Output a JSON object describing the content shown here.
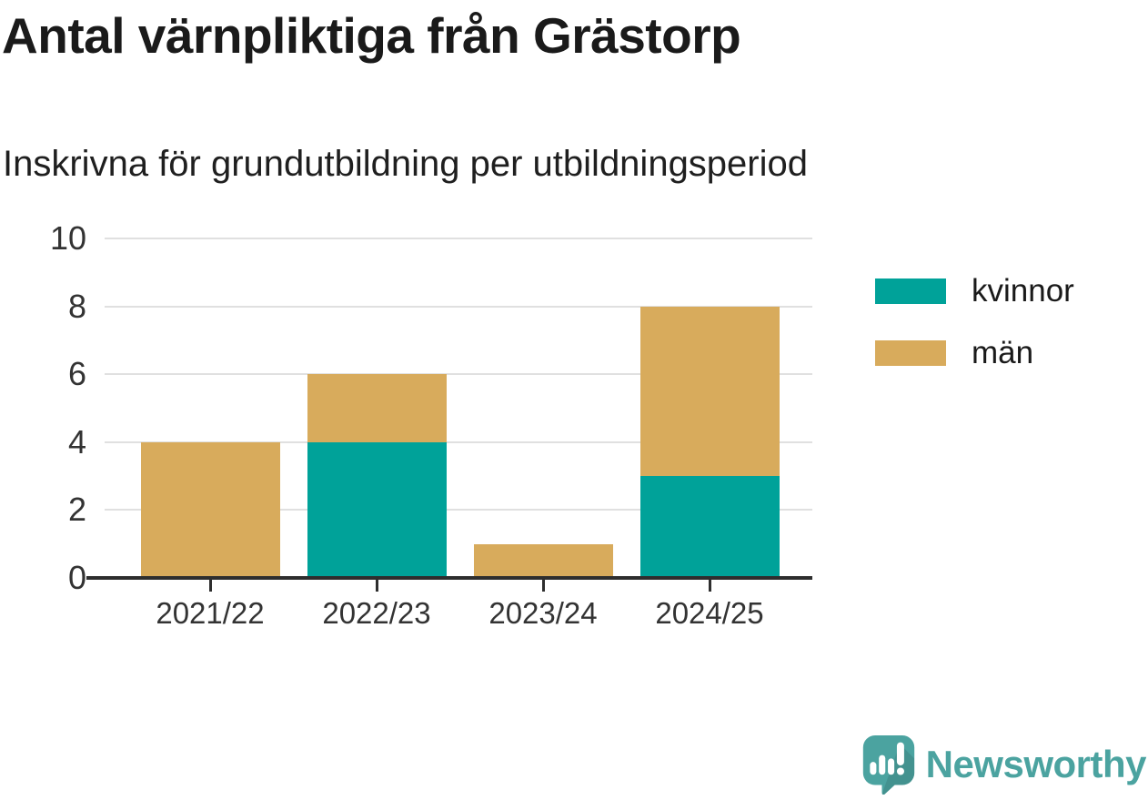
{
  "title": "Antal värnpliktiga från Grästorp",
  "subtitle": "Inskrivna för grundutbildning per utbildningsperiod",
  "colors": {
    "kvinnor": "#00A299",
    "man": "#D8AB5C",
    "logo_teal": "#4BA3A0",
    "gridline": "#E0E0E0",
    "axis_line": "#2E2E2E",
    "title_text": "#1A1A1A",
    "tick_text": "#333333"
  },
  "legend": [
    {
      "label": "kvinnor",
      "color": "#00A299"
    },
    {
      "label": "män",
      "color": "#D8AB5C"
    }
  ],
  "chart_data": {
    "type": "bar",
    "stacked": true,
    "title": "Antal värnpliktiga från Grästorp",
    "subtitle": "Inskrivna för grundutbildning per utbildningsperiod",
    "categories": [
      "2021/22",
      "2022/23",
      "2023/24",
      "2024/25"
    ],
    "series": [
      {
        "name": "kvinnor",
        "color": "#00A299",
        "values": [
          0,
          4,
          0,
          3
        ]
      },
      {
        "name": "män",
        "color": "#D8AB5C",
        "values": [
          4,
          2,
          1,
          5
        ]
      }
    ],
    "totals": [
      4,
      6,
      1,
      8
    ],
    "xlabel": "",
    "ylabel": "",
    "ylim": [
      0,
      10
    ],
    "yticks": [
      0,
      2,
      4,
      6,
      8,
      10
    ],
    "grid": true,
    "legend_position": "right"
  },
  "branding": {
    "logo_text": "Newsworthy",
    "logo_icon": "newsworthy-speech-bubble-bar-chart-icon"
  }
}
